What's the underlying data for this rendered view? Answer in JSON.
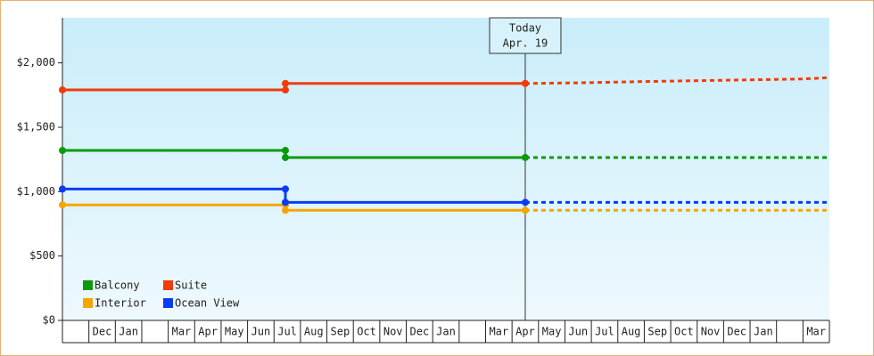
{
  "chart_data": {
    "type": "step-line",
    "categories": [
      null,
      "Dec",
      "Jan",
      null,
      "Mar",
      "Apr",
      "May",
      "Jun",
      "Jul",
      "Aug",
      "Sep",
      "Oct",
      "Nov",
      "Dec",
      "Jan",
      null,
      "Mar",
      "Apr",
      "May",
      "Jun",
      "Jul",
      "Aug",
      "Sep",
      "Oct",
      "Nov",
      "Dec",
      "Jan",
      null,
      "Mar"
    ],
    "xlim": [
      0,
      29
    ],
    "ylim": [
      0,
      2350
    ],
    "yticks": [
      {
        "value": 0,
        "label": "$0"
      },
      {
        "value": 500,
        "label": "$500"
      },
      {
        "value": 1000,
        "label": "$1,000"
      },
      {
        "value": 1500,
        "label": "$1,500"
      },
      {
        "value": 2000,
        "label": "$2,000"
      }
    ],
    "annotation": {
      "text": [
        "Today",
        "Apr. 19"
      ],
      "x": 17.5
    },
    "legend": "bottom-left",
    "series": [
      {
        "name": "Balcony",
        "color": "#0a9a0a",
        "x": [
          0,
          8.43,
          8.43,
          17.5
        ],
        "values": [
          1320,
          1320,
          1265,
          1265
        ],
        "forecast_x": [
          17.5,
          29
        ],
        "forecast_values": [
          1265,
          1265
        ]
      },
      {
        "name": "Suite",
        "color": "#f03c0a",
        "x": [
          0,
          8.43,
          8.43,
          17.5
        ],
        "values": [
          1790,
          1790,
          1840,
          1840
        ],
        "forecast_x": [
          17.5,
          19.5,
          22,
          25,
          28,
          29
        ],
        "forecast_values": [
          1840,
          1845,
          1855,
          1865,
          1875,
          1885
        ]
      },
      {
        "name": "Interior",
        "color": "#f5a500",
        "x": [
          0,
          8.43,
          8.43,
          17.5
        ],
        "values": [
          897,
          897,
          855,
          855
        ],
        "forecast_x": [
          17.5,
          29
        ],
        "forecast_values": [
          855,
          855
        ]
      },
      {
        "name": "Ocean View",
        "color": "#0a3cf5",
        "x": [
          0,
          8.43,
          8.43,
          17.5
        ],
        "values": [
          1020,
          1020,
          917,
          917
        ],
        "forecast_x": [
          17.5,
          29
        ],
        "forecast_values": [
          917,
          917
        ]
      }
    ]
  }
}
